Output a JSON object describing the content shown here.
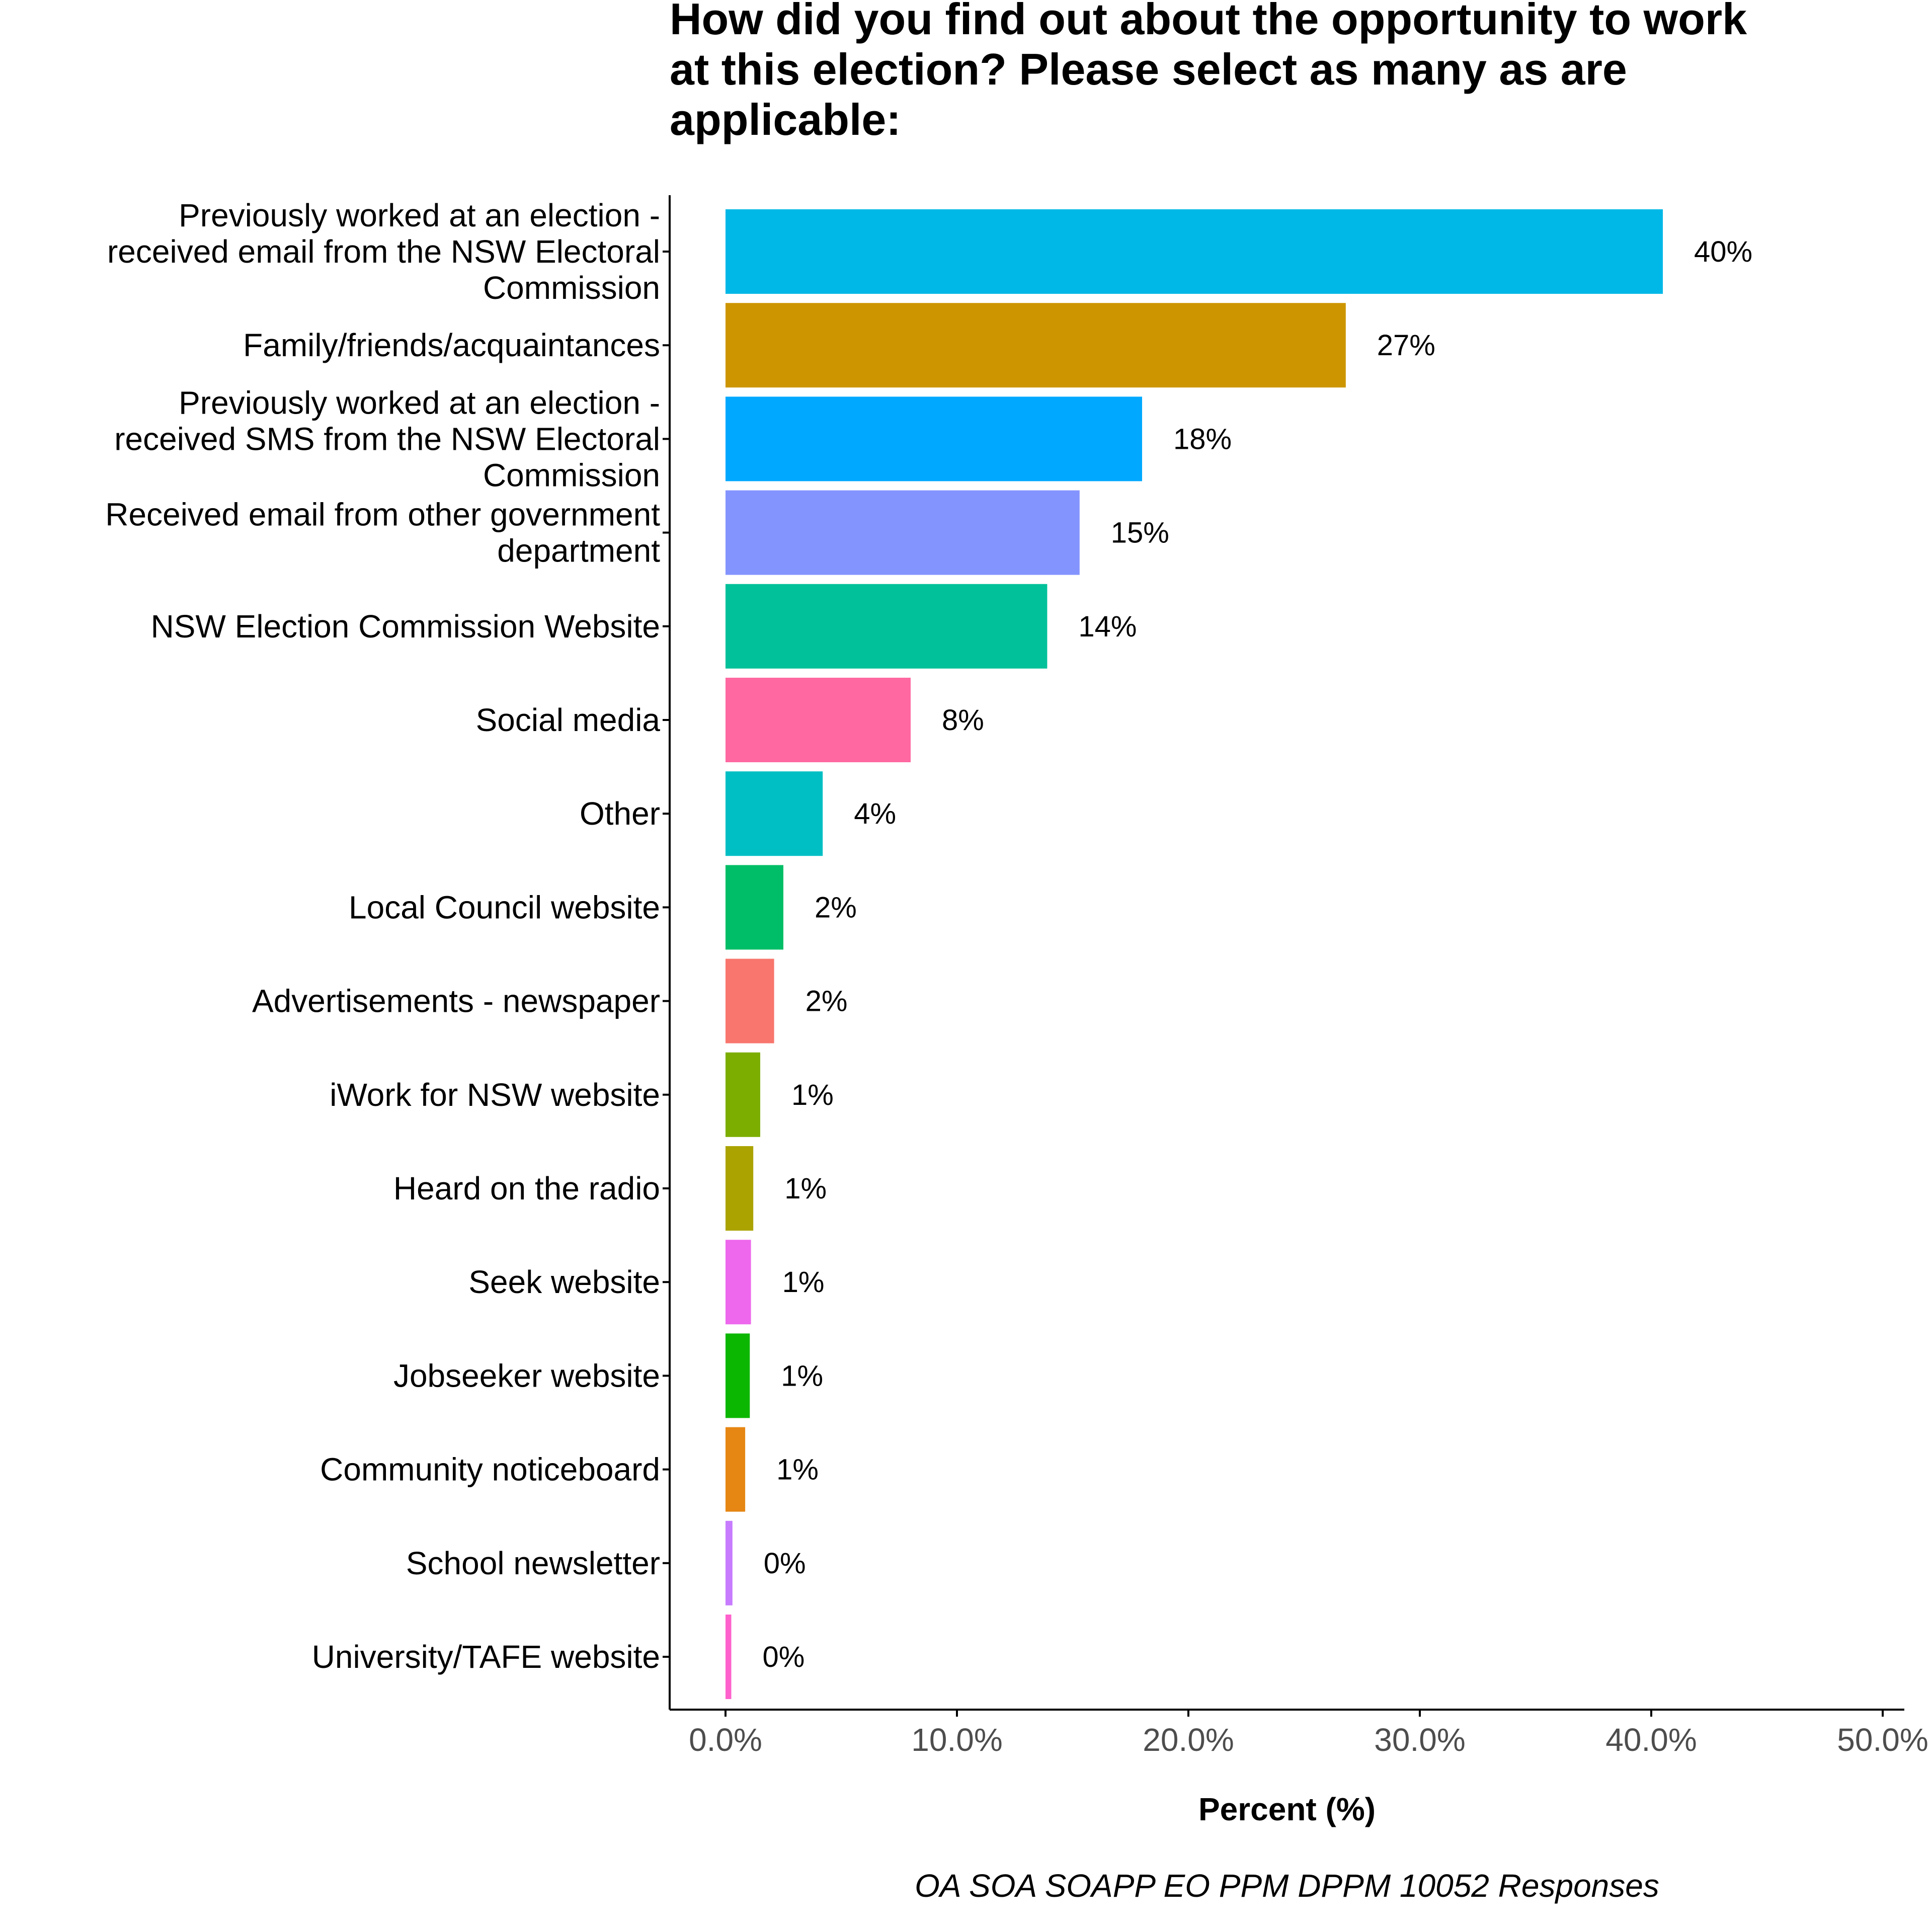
{
  "chart_data": {
    "type": "bar",
    "orientation": "horizontal",
    "title_lines": [
      "How did you find out about the opportunity to work",
      "at this election? Please select as many as are",
      "applicable:"
    ],
    "xlabel": "Percent (%)",
    "ylabel": "",
    "caption": "OA SOA SOAPP EO PPM DPPM 10052 Responses",
    "xlim": [
      0,
      50
    ],
    "x_ticks": [
      "0.0%",
      "10.0%",
      "20.0%",
      "30.0%",
      "40.0%",
      "50.0%"
    ],
    "grid": false,
    "legend": "none",
    "categories": [
      [
        "Previously worked at an election -",
        "received email from the NSW Electoral",
        "Commission"
      ],
      [
        "Family/friends/acquaintances"
      ],
      [
        "Previously worked at an election -",
        "received SMS from the NSW Electoral",
        "Commission"
      ],
      [
        "Received email from other government",
        "department"
      ],
      [
        "NSW Election Commission Website"
      ],
      [
        "Social media"
      ],
      [
        "Other"
      ],
      [
        "Local Council website"
      ],
      [
        "Advertisements - newspaper"
      ],
      [
        "iWork for NSW website"
      ],
      [
        "Heard on the radio"
      ],
      [
        "Seek website"
      ],
      [
        "Jobseeker website"
      ],
      [
        "Community noticeboard"
      ],
      [
        "School newsletter"
      ],
      [
        "University/TAFE website"
      ]
    ],
    "values": [
      40.5,
      26.8,
      18.0,
      15.3,
      13.9,
      8.0,
      4.2,
      2.5,
      2.1,
      1.5,
      1.2,
      1.1,
      1.05,
      0.85,
      0.3,
      0.25
    ],
    "data_labels": [
      "40%",
      "27%",
      "18%",
      "15%",
      "14%",
      "8%",
      "4%",
      "2%",
      "2%",
      "1%",
      "1%",
      "1%",
      "1%",
      "1%",
      "0%",
      "0%"
    ],
    "colors": [
      "#00B8E7",
      "#CD9600",
      "#00A9FF",
      "#8494FF",
      "#00C19A",
      "#FF68A1",
      "#00BFC4",
      "#00BE67",
      "#F8766D",
      "#7CAE00",
      "#ABA300",
      "#ED68ED",
      "#0CB702",
      "#E68613",
      "#C77CFF",
      "#FF61CC"
    ]
  }
}
